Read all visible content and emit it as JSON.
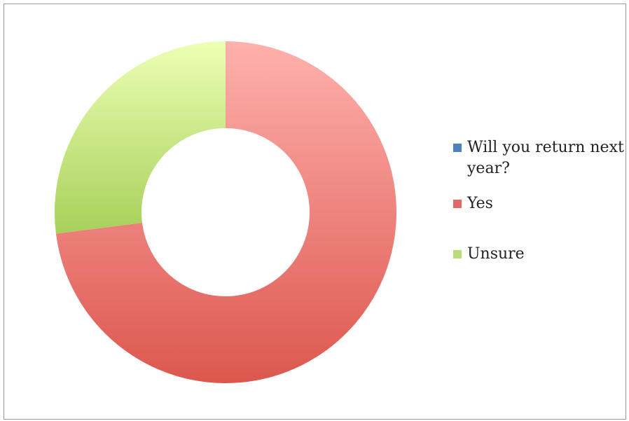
{
  "chart_data": {
    "type": "pie",
    "variant": "donut",
    "title": "",
    "categories": [
      "Will you return next year?",
      "Yes",
      "Unsure"
    ],
    "values": [
      0,
      73,
      27
    ],
    "colors": [
      "#4f81bd",
      "#e06a63",
      "#b9dc7a"
    ],
    "legend_position": "right"
  }
}
